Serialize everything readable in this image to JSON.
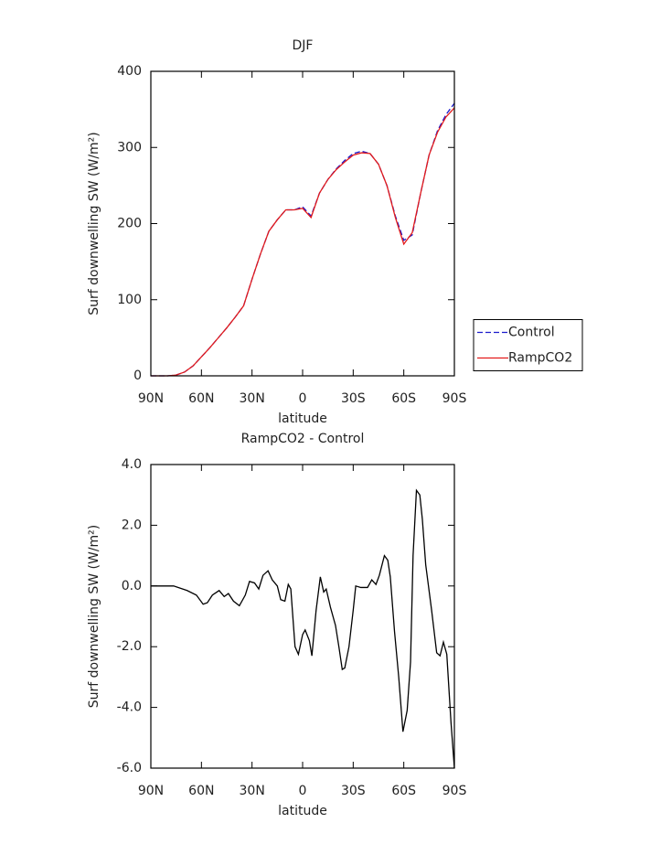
{
  "chart_data": [
    {
      "type": "line",
      "title": "DJF",
      "xlabel": "latitude",
      "ylabel": "Surf downwelling SW (W/m²)",
      "x": [
        90,
        85,
        80,
        75,
        70,
        65,
        60,
        55,
        50,
        45,
        40,
        35,
        30,
        25,
        20,
        15,
        10,
        5,
        0,
        -5,
        -10,
        -15,
        -20,
        -25,
        -30,
        -35,
        -40,
        -45,
        -50,
        -55,
        -60,
        -65,
        -70,
        -75,
        -80,
        -85,
        -90
      ],
      "series": [
        {
          "name": "Control",
          "color": "#1a1acc",
          "dashed": true,
          "values": [
            0,
            0,
            0,
            1,
            5,
            13,
            25,
            37,
            50,
            63,
            77,
            92,
            127,
            160,
            190,
            205,
            218,
            218,
            222,
            210,
            240,
            258,
            272,
            283,
            292,
            295,
            292,
            278,
            250,
            210,
            178,
            185,
            240,
            290,
            322,
            343,
            358
          ]
        },
        {
          "name": "RampCO2",
          "color": "#e31a1a",
          "dashed": false,
          "values": [
            0,
            0,
            0,
            1,
            5,
            13,
            25,
            37,
            50,
            63,
            77,
            92,
            127,
            160,
            190,
            205,
            218,
            218,
            220,
            208,
            240,
            258,
            271,
            281,
            290,
            293,
            292,
            278,
            250,
            208,
            173,
            188,
            240,
            290,
            320,
            340,
            352
          ]
        }
      ],
      "xlim": [
        90,
        -90
      ],
      "xticks": [
        {
          "value": 90,
          "label": "90N"
        },
        {
          "value": 60,
          "label": "60N"
        },
        {
          "value": 30,
          "label": "30N"
        },
        0,
        {
          "value": -30,
          "label": "30S"
        },
        {
          "value": -60,
          "label": "60S"
        },
        {
          "value": -90,
          "label": "90S"
        }
      ],
      "ylim": [
        0,
        400
      ],
      "yticks": [
        0,
        100,
        200,
        300,
        400
      ],
      "legend": "right"
    },
    {
      "type": "line",
      "title": "RampCO2 - Control",
      "xlabel": "latitude",
      "ylabel": "Surf downwelling SW (W/m²)",
      "x": [
        90,
        76.5,
        68.5,
        63,
        59,
        56.5,
        53.5,
        49.5,
        46.5,
        44,
        41,
        37.5,
        34,
        31.5,
        28.5,
        26,
        23.5,
        20.5,
        18,
        15,
        13,
        10.5,
        8.5,
        7,
        4.5,
        2.5,
        0,
        -1.5,
        -4,
        -5.5,
        -8,
        -10.5,
        -12.5,
        -14,
        -16.5,
        -19.5,
        -21.5,
        -23.5,
        -25,
        -27.5,
        -30,
        -31.5,
        -34.5,
        -38.5,
        -41,
        -43.5,
        -45.5,
        -48.5,
        -50.5,
        -52,
        -54.5,
        -57,
        -59.5,
        -62,
        -64,
        -65.5,
        -67.5,
        -69.5,
        -71,
        -73,
        -76.5,
        -79.5,
        -81.5,
        -83.5,
        -85.5,
        -88,
        -90
      ],
      "series": [
        {
          "color": "#000000",
          "dashed": false,
          "values": [
            0,
            0,
            -0.15,
            -0.3,
            -0.6,
            -0.55,
            -0.3,
            -0.15,
            -0.35,
            -0.25,
            -0.5,
            -0.65,
            -0.3,
            0.15,
            0.1,
            -0.1,
            0.35,
            0.5,
            0.2,
            0,
            -0.45,
            -0.5,
            0.05,
            -0.1,
            -2.0,
            -2.25,
            -1.6,
            -1.45,
            -1.8,
            -2.3,
            -0.8,
            0.3,
            -0.2,
            -0.1,
            -0.7,
            -1.3,
            -2.0,
            -2.75,
            -2.7,
            -2.0,
            -0.8,
            0.0,
            -0.05,
            -0.05,
            0.2,
            0.05,
            0.35,
            1.0,
            0.85,
            0.3,
            -1.5,
            -3.0,
            -4.8,
            -4.1,
            -2.5,
            1.0,
            3.15,
            3.0,
            2.2,
            0.7,
            -0.8,
            -2.2,
            -2.3,
            -1.85,
            -2.25,
            -4.5,
            -6.0
          ]
        }
      ],
      "xlim": [
        90,
        -90
      ],
      "xticks": [
        {
          "value": 90,
          "label": "90N"
        },
        {
          "value": 60,
          "label": "60N"
        },
        {
          "value": 30,
          "label": "30N"
        },
        0,
        {
          "value": -30,
          "label": "30S"
        },
        {
          "value": -60,
          "label": "60S"
        },
        {
          "value": -90,
          "label": "90S"
        }
      ],
      "ylim": [
        -6,
        4
      ],
      "yticks": [
        {
          "value": -6,
          "label": "-6.0"
        },
        {
          "value": -4,
          "label": "-4.0"
        },
        {
          "value": -2,
          "label": "-2.0"
        },
        {
          "value": 0,
          "label": "0.0"
        },
        {
          "value": 2,
          "label": "2.0"
        },
        {
          "value": 4,
          "label": "4.0"
        }
      ]
    }
  ]
}
